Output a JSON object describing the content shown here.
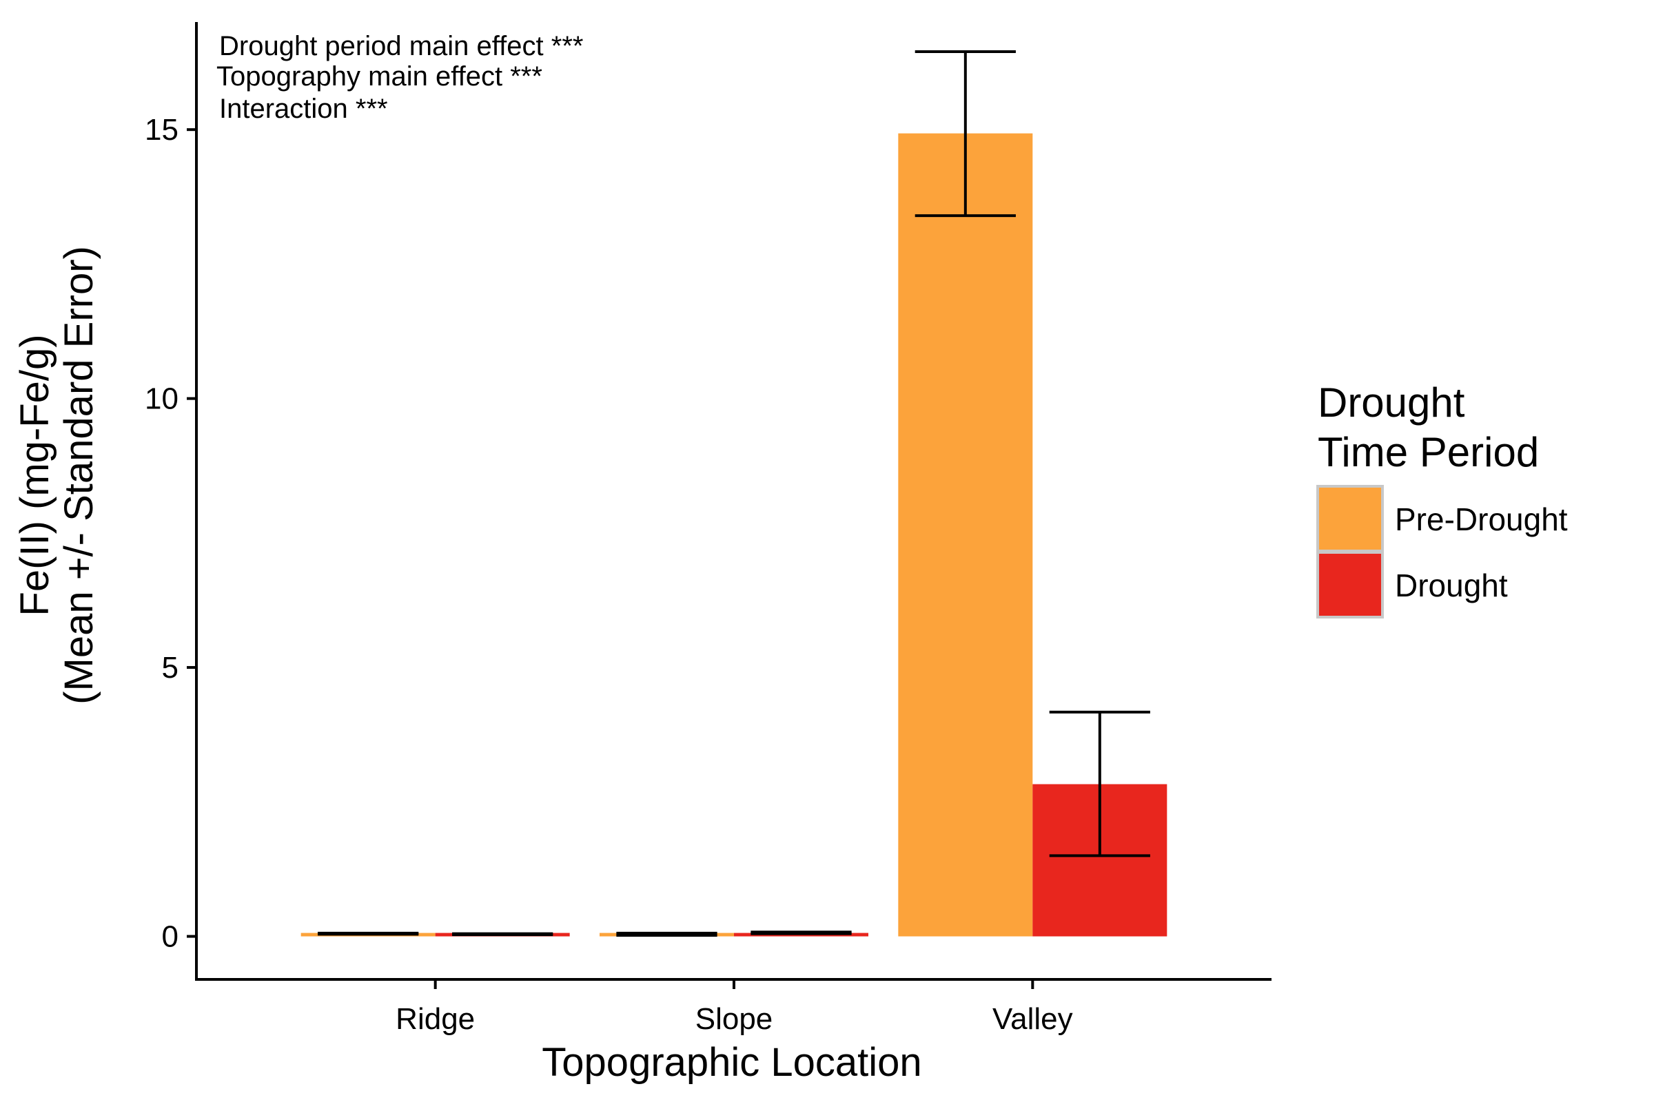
{
  "chart_data": {
    "type": "bar",
    "categories": [
      "Ridge",
      "Slope",
      "Valley"
    ],
    "series": [
      {
        "name": "Pre-Drought",
        "color": "#FCA33B",
        "values": [
          0.04,
          0.02,
          14.93
        ],
        "error_low": [
          0.04,
          0.02,
          13.4
        ],
        "error_high": [
          0.06,
          0.06,
          16.45
        ]
      },
      {
        "name": "Drought",
        "color": "#E8261E",
        "values": [
          0.04,
          0.04,
          2.83
        ],
        "error_low": [
          0.03,
          0.05,
          1.5
        ],
        "error_high": [
          0.05,
          0.08,
          4.17
        ]
      }
    ],
    "xlabel": "Topographic Location",
    "ylabel_lines": [
      "Fe(II) (mg-Fe/g)",
      "(Mean +/- Standard Error)"
    ],
    "ylim": [
      -0.8,
      17
    ],
    "yticks": [
      0,
      5,
      10,
      15
    ],
    "grid": false,
    "annotations": [
      "Drought period main effect  ***",
      "Topography main effect  ***",
      "Interaction  ***"
    ],
    "legend": {
      "title_lines": [
        "Drought",
        "Time Period"
      ],
      "position": "right"
    }
  }
}
